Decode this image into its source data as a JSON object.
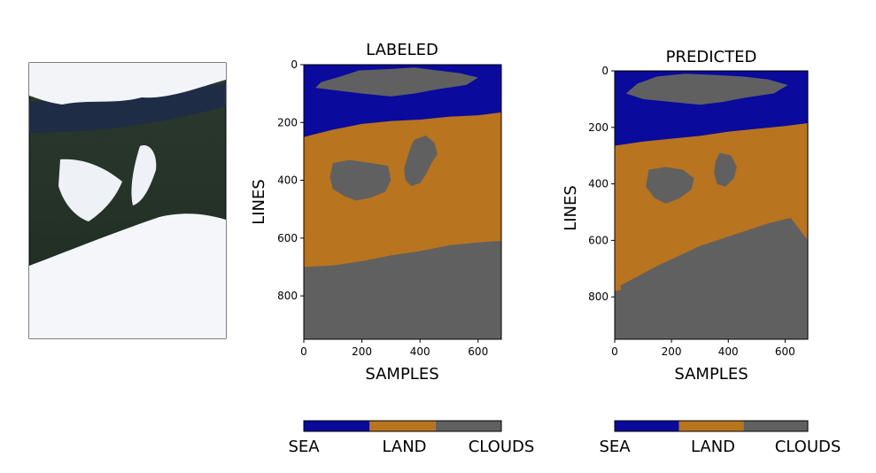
{
  "chart_data": [
    {
      "type": "image",
      "name": "rgb-satellite-image"
    },
    {
      "type": "heatmap",
      "title": "LABELED",
      "xlabel": "SAMPLES",
      "ylabel": "LINES",
      "xlim": [
        0,
        680
      ],
      "ylim": [
        950,
        0
      ],
      "xticks": [
        0,
        200,
        400,
        600
      ],
      "yticks": [
        0,
        200,
        400,
        600,
        800
      ],
      "classes": [
        "SEA",
        "LAND",
        "CLOUDS"
      ],
      "colors": {
        "SEA": "#0a0a9c",
        "LAND": "#b8741f",
        "CLOUDS": "#606060"
      },
      "sea_lower_edge": [
        [
          0,
          250
        ],
        [
          100,
          225
        ],
        [
          200,
          205
        ],
        [
          300,
          195
        ],
        [
          400,
          190
        ],
        [
          500,
          180
        ],
        [
          600,
          175
        ],
        [
          680,
          165
        ]
      ],
      "land_lower_edge": [
        [
          0,
          700
        ],
        [
          100,
          695
        ],
        [
          200,
          680
        ],
        [
          300,
          660
        ],
        [
          400,
          645
        ],
        [
          500,
          625
        ],
        [
          600,
          615
        ],
        [
          680,
          610
        ]
      ],
      "cloud_regions": [
        [
          [
            190,
            20
          ],
          [
            300,
            15
          ],
          [
            380,
            10
          ],
          [
            460,
            20
          ],
          [
            540,
            30
          ],
          [
            600,
            45
          ],
          [
            560,
            70
          ],
          [
            460,
            85
          ],
          [
            380,
            100
          ],
          [
            300,
            110
          ],
          [
            200,
            100
          ],
          [
            120,
            90
          ],
          [
            40,
            80
          ],
          [
            60,
            60
          ],
          [
            130,
            40
          ]
        ],
        [
          [
            100,
            340
          ],
          [
            160,
            330
          ],
          [
            230,
            340
          ],
          [
            290,
            350
          ],
          [
            300,
            400
          ],
          [
            280,
            440
          ],
          [
            230,
            460
          ],
          [
            180,
            470
          ],
          [
            140,
            455
          ],
          [
            100,
            430
          ],
          [
            90,
            390
          ]
        ],
        [
          [
            380,
            260
          ],
          [
            420,
            245
          ],
          [
            450,
            270
          ],
          [
            460,
            310
          ],
          [
            440,
            340
          ],
          [
            420,
            380
          ],
          [
            400,
            410
          ],
          [
            370,
            420
          ],
          [
            350,
            400
          ],
          [
            345,
            360
          ],
          [
            360,
            310
          ],
          [
            370,
            280
          ]
        ]
      ]
    },
    {
      "type": "heatmap",
      "title": "PREDICTED",
      "xlabel": "SAMPLES",
      "ylabel": "LINES",
      "xlim": [
        0,
        680
      ],
      "ylim": [
        950,
        0
      ],
      "xticks": [
        0,
        200,
        400,
        600
      ],
      "yticks": [
        0,
        200,
        400,
        600,
        800
      ],
      "classes": [
        "SEA",
        "LAND",
        "CLOUDS"
      ],
      "colors": {
        "SEA": "#0a0a9c",
        "LAND": "#b8741f",
        "CLOUDS": "#606060"
      },
      "sea_lower_edge": [
        [
          0,
          265
        ],
        [
          100,
          250
        ],
        [
          200,
          240
        ],
        [
          300,
          230
        ],
        [
          400,
          215
        ],
        [
          500,
          205
        ],
        [
          600,
          195
        ],
        [
          680,
          185
        ]
      ],
      "land_lower_edge": [
        [
          0,
          780
        ],
        [
          100,
          760
        ],
        [
          200,
          740
        ],
        [
          300,
          720
        ],
        [
          400,
          700
        ],
        [
          500,
          680
        ],
        [
          600,
          660
        ],
        [
          680,
          640
        ]
      ],
      "cloud_regions": [
        [
          [
            150,
            20
          ],
          [
            250,
            10
          ],
          [
            360,
            15
          ],
          [
            450,
            20
          ],
          [
            540,
            30
          ],
          [
            610,
            50
          ],
          [
            560,
            80
          ],
          [
            460,
            95
          ],
          [
            380,
            110
          ],
          [
            300,
            120
          ],
          [
            200,
            110
          ],
          [
            100,
            100
          ],
          [
            40,
            80
          ],
          [
            80,
            45
          ]
        ],
        [
          [
            120,
            350
          ],
          [
            180,
            340
          ],
          [
            240,
            350
          ],
          [
            280,
            380
          ],
          [
            270,
            420
          ],
          [
            230,
            450
          ],
          [
            180,
            470
          ],
          [
            140,
            450
          ],
          [
            110,
            410
          ]
        ],
        [
          [
            370,
            290
          ],
          [
            410,
            300
          ],
          [
            430,
            340
          ],
          [
            420,
            380
          ],
          [
            390,
            410
          ],
          [
            360,
            400
          ],
          [
            350,
            360
          ],
          [
            355,
            320
          ]
        ],
        [
          [
            20,
            760
          ],
          [
            150,
            690
          ],
          [
            300,
            620
          ],
          [
            420,
            580
          ],
          [
            540,
            540
          ],
          [
            620,
            520
          ],
          [
            680,
            600
          ],
          [
            680,
            700
          ],
          [
            500,
            700
          ],
          [
            350,
            730
          ],
          [
            200,
            780
          ],
          [
            80,
            820
          ],
          [
            30,
            810
          ]
        ]
      ]
    }
  ],
  "colorbar": {
    "labels": [
      "SEA",
      "LAND",
      "CLOUDS"
    ],
    "colors": [
      "#0a0a9c",
      "#b8741f",
      "#606060"
    ]
  }
}
